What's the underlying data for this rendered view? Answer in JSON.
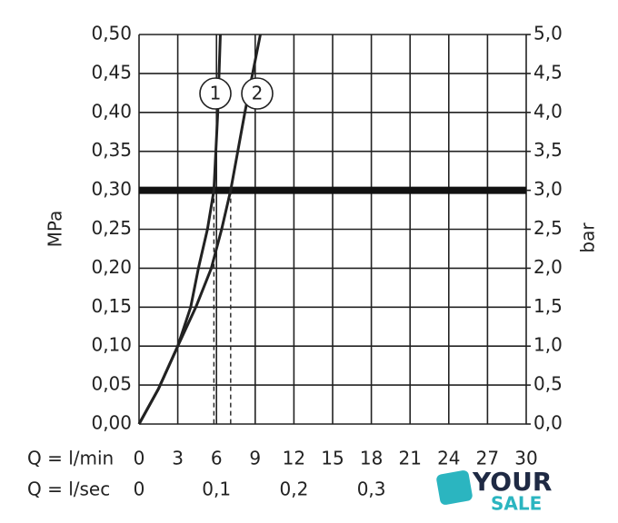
{
  "chart_data": {
    "type": "line",
    "ylabel": "MPa",
    "y2label": "bar",
    "xlabel": "Q = l/min",
    "x2label": "Q = l/sec",
    "xlim": [
      0,
      30
    ],
    "xticks": [
      0,
      3,
      6,
      9,
      12,
      15,
      18,
      21,
      24,
      27,
      30
    ],
    "x2lim": [
      0,
      0.5
    ],
    "x2ticks": [
      0,
      {
        "value": 0.1,
        "label": "0,1"
      },
      {
        "value": 0.2,
        "label": "0,2"
      },
      {
        "value": 0.3,
        "label": "0,3"
      }
    ],
    "ylim": [
      0,
      0.5
    ],
    "yticks": [
      {
        "value": 0,
        "label": "0,00"
      },
      {
        "value": 0.05,
        "label": "0,05"
      },
      {
        "value": 0.1,
        "label": "0,10"
      },
      {
        "value": 0.15,
        "label": "0,15"
      },
      {
        "value": 0.2,
        "label": "0,20"
      },
      {
        "value": 0.25,
        "label": "0,25"
      },
      {
        "value": 0.3,
        "label": "0,30"
      },
      {
        "value": 0.35,
        "label": "0,35"
      },
      {
        "value": 0.4,
        "label": "0,40"
      },
      {
        "value": 0.45,
        "label": "0,45"
      },
      {
        "value": 0.5,
        "label": "0,50"
      }
    ],
    "y2lim": [
      0,
      5
    ],
    "y2ticks": [
      {
        "value": 0,
        "label": "0,0"
      },
      {
        "value": 0.5,
        "label": "0,5"
      },
      {
        "value": 1,
        "label": "1,0"
      },
      {
        "value": 1.5,
        "label": "1,5"
      },
      {
        "value": 2,
        "label": "2,0"
      },
      {
        "value": 2.5,
        "label": "2,5"
      },
      {
        "value": 3,
        "label": "3,0"
      },
      {
        "value": 3.5,
        "label": "3,5"
      },
      {
        "value": 4,
        "label": "4,0"
      },
      {
        "value": 4.5,
        "label": "4,5"
      },
      {
        "value": 5,
        "label": "5,0"
      }
    ],
    "grid": true,
    "reference_line": 0.3,
    "dashed_x": [
      5.8,
      7.1
    ],
    "series": [
      {
        "name": "1",
        "color": "#222222",
        "x": [
          0,
          1.5,
          3,
          4,
          4.6,
          5.3,
          5.8,
          6.1,
          6.3
        ],
        "values": [
          0,
          0.045,
          0.1,
          0.15,
          0.2,
          0.25,
          0.3,
          0.4,
          0.5
        ]
      },
      {
        "name": "2",
        "color": "#222222",
        "x": [
          0,
          1.5,
          3,
          4.4,
          5.6,
          6.4,
          7.1,
          8.2,
          9.4
        ],
        "values": [
          0,
          0.045,
          0.1,
          0.15,
          0.2,
          0.25,
          0.3,
          0.4,
          0.5
        ]
      }
    ]
  },
  "watermark": {
    "line1": "YOUR",
    "line2": "SALE"
  }
}
